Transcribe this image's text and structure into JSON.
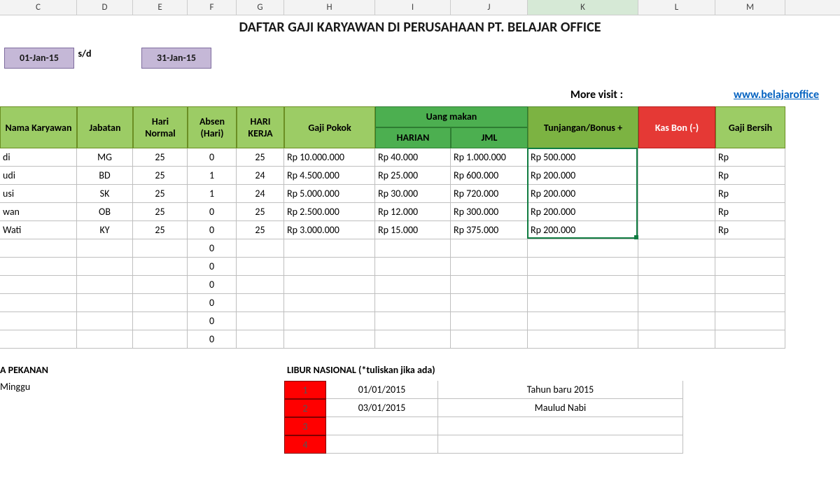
{
  "columns": [
    {
      "letter": "C",
      "width": 110
    },
    {
      "letter": "D",
      "width": 80
    },
    {
      "letter": "E",
      "width": 78
    },
    {
      "letter": "F",
      "width": 70
    },
    {
      "letter": "G",
      "width": 68
    },
    {
      "letter": "H",
      "width": 130
    },
    {
      "letter": "I",
      "width": 108
    },
    {
      "letter": "J",
      "width": 110
    },
    {
      "letter": "K",
      "width": 158
    },
    {
      "letter": "L",
      "width": 110
    },
    {
      "letter": "M",
      "width": 100
    }
  ],
  "selected_col": "K",
  "title": "DAFTAR GAJI KARYAWAN DI PERUSAHAAN PT. BELAJAR OFFICE",
  "date_from": "01-Jan-15",
  "date_sep": "s/d",
  "date_to": "31-Jan-15",
  "more_visit_label": "More visit :",
  "more_visit_link": "www.belajaroffice",
  "headers": {
    "nama": "Nama Karyawan",
    "jabatan": "Jabatan",
    "hari_normal": "Hari Normal",
    "absen": "Absen (Hari)",
    "hari_kerja": "HARI KERJA",
    "gaji_pokok": "Gaji Pokok",
    "uang_makan": "Uang makan",
    "uang_makan_harian": "HARIAN",
    "uang_makan_jml": "JML",
    "bonus": "Tunjangan/Bonus +",
    "kas_bon": "Kas Bon (-)",
    "gaji_bersih": "Gaji Bersih"
  },
  "rows": [
    {
      "nama": "di",
      "jabatan": "MG",
      "hari_normal": "25",
      "absen": "0",
      "hari_kerja": "25",
      "gaji_pokok": "Rp 10.000.000",
      "harian": "Rp     40.000",
      "jml": "Rp 1.000.000",
      "bonus": "Rp              500.000",
      "kasbon": "",
      "bersih": "Rp"
    },
    {
      "nama": "udi",
      "jabatan": "BD",
      "hari_normal": "25",
      "absen": "1",
      "hari_kerja": "24",
      "gaji_pokok": "Rp   4.500.000",
      "harian": "Rp     25.000",
      "jml": "Rp    600.000",
      "bonus": "Rp              200.000",
      "kasbon": "",
      "bersih": "Rp"
    },
    {
      "nama": "usi",
      "jabatan": "SK",
      "hari_normal": "25",
      "absen": "1",
      "hari_kerja": "24",
      "gaji_pokok": "Rp   5.000.000",
      "harian": "Rp     30.000",
      "jml": "Rp    720.000",
      "bonus": "Rp              200.000",
      "kasbon": "",
      "bersih": "Rp"
    },
    {
      "nama": "wan",
      "jabatan": "OB",
      "hari_normal": "25",
      "absen": "0",
      "hari_kerja": "25",
      "gaji_pokok": "Rp   2.500.000",
      "harian": "Rp     12.000",
      "jml": "Rp    300.000",
      "bonus": "Rp              200.000",
      "kasbon": "",
      "bersih": "Rp"
    },
    {
      "nama": "Wati",
      "jabatan": "KY",
      "hari_normal": "25",
      "absen": "0",
      "hari_kerja": "25",
      "gaji_pokok": "Rp   3.000.000",
      "harian": "Rp     15.000",
      "jml": "Rp    375.000",
      "bonus": "Rp              200.000",
      "kasbon": "",
      "bersih": "Rp"
    }
  ],
  "empty_absen_rows": 6,
  "pekanan_label": "A PEKANAN",
  "pekanan_value": "Minggu",
  "libur_label": "LIBUR NASIONAL (*tuliskan jika ada)",
  "libur": [
    {
      "n": "1",
      "tgl": "01/01/2015",
      "desc": "Tahun baru 2015"
    },
    {
      "n": "2",
      "tgl": "03/01/2015",
      "desc": "Maulud Nabi"
    },
    {
      "n": "3",
      "tgl": "",
      "desc": ""
    },
    {
      "n": "4",
      "tgl": "",
      "desc": ""
    }
  ],
  "colors": {
    "col_header_bg": "#f3f3f3",
    "lavender": "#c5b8d7",
    "green_hdr": "#9ccc65",
    "green_dark": "#4caf50",
    "green_bonus": "#7cb342",
    "red_hdr": "#e53935",
    "red_cell": "#ff0000",
    "link": "#0563c1",
    "selection": "#107c41"
  }
}
